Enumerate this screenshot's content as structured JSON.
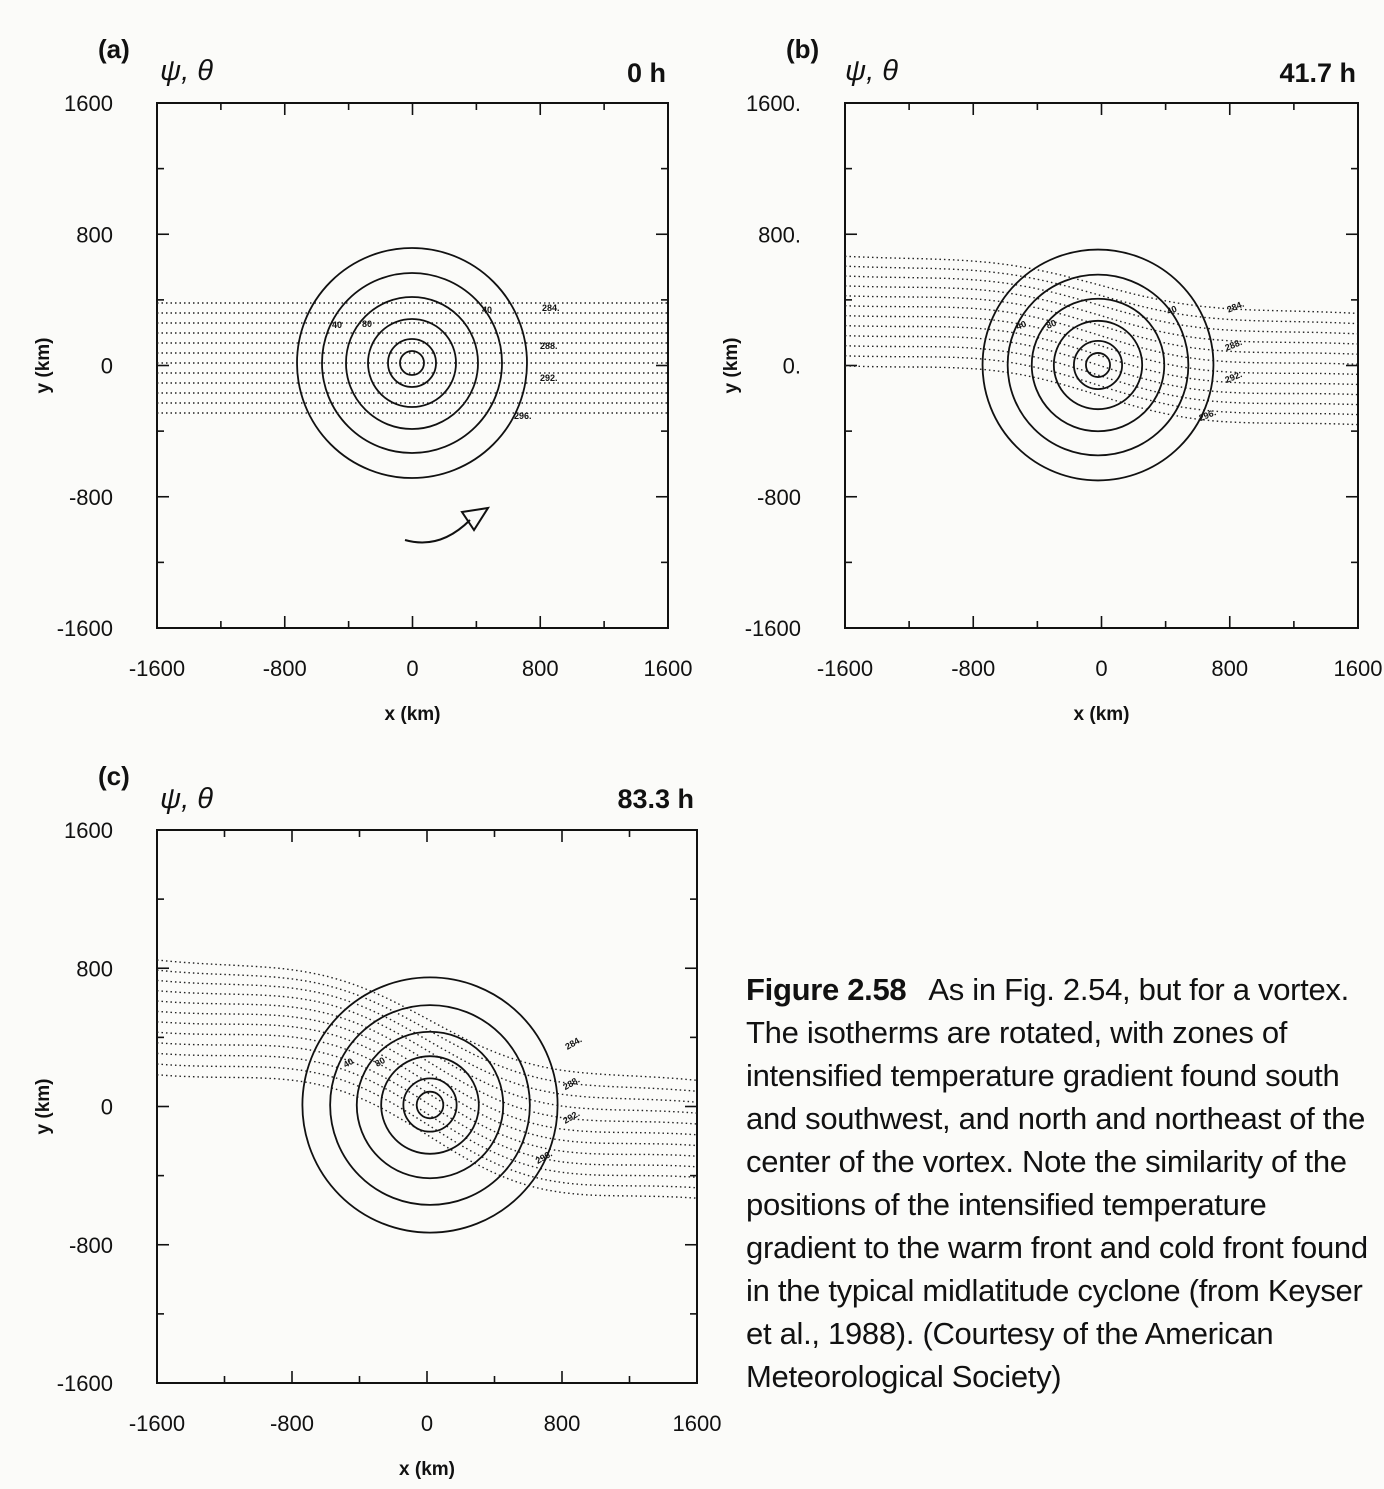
{
  "panels": [
    {
      "letter": "(a)",
      "title": "ψ, θ",
      "time": "0 h",
      "xlabel": "x (km)",
      "ylabel": "y (km)",
      "xticks": [
        "-1600",
        "-800",
        "0",
        "800",
        "1600"
      ],
      "yticks": [
        "1600",
        "800",
        "0",
        "-800",
        "-1600"
      ],
      "contour_labels": [
        "284.",
        "288.",
        "292.",
        "296.",
        "40",
        "80",
        "40"
      ]
    },
    {
      "letter": "(b)",
      "title": "ψ, θ",
      "time": "41.7 h",
      "xlabel": "x (km)",
      "ylabel": "y (km)",
      "xticks": [
        "-1600",
        "-800",
        "0",
        "800",
        "1600"
      ],
      "yticks": [
        "1600.",
        "800.",
        "0.",
        "-800",
        "-1600"
      ],
      "contour_labels": [
        "284.",
        "288.",
        "292.",
        "296.",
        "40",
        "80",
        "40"
      ]
    },
    {
      "letter": "(c)",
      "title": "ψ, θ",
      "time": "83.3 h",
      "xlabel": "x (km)",
      "ylabel": "y (km)",
      "xticks": [
        "-1600",
        "-800",
        "0",
        "800",
        "1600"
      ],
      "yticks": [
        "1600",
        "800",
        "0",
        "-800",
        "-1600"
      ],
      "contour_labels": [
        "284.",
        "288.",
        "292.",
        "296.",
        "40",
        "80"
      ]
    }
  ],
  "caption": {
    "label": "Figure 2.58",
    "text": "As in Fig. 2.54, but for a vortex. The isotherms are rotated, with zones of intensified temperature gradient found south and southwest, and north and northeast of the center of the vortex. Note the similarity of the positions of the intensified temperature gradient to the warm front and cold front found in the typical midlatitude cyclone (from Keyser et al., 1988). (Courtesy of the American Meteorological Society)"
  }
}
